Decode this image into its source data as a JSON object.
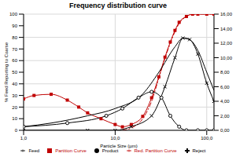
{
  "chart_data": {
    "type": "line",
    "title": "Frequency distribution curve",
    "x_label": "Particle Size (µm)",
    "y_label": "% Feed Reporting to Coarse",
    "log": "x",
    "grid": true,
    "legend": "bottom",
    "xlim": [
      1,
      120
    ],
    "xticks": [
      {
        "value": 1,
        "label": "1,0"
      },
      {
        "value": 10,
        "label": "10,0"
      },
      {
        "value": 100,
        "label": "100,0"
      }
    ],
    "ylim": [
      0,
      100
    ],
    "yticks": [
      0,
      10,
      20,
      30,
      40,
      50,
      60,
      70,
      80,
      90,
      100
    ],
    "y2lim": [
      0,
      16
    ],
    "y2ticks": [
      {
        "value": 0,
        "label": "0,00"
      },
      {
        "value": 2,
        "label": "2,00"
      },
      {
        "value": 4,
        "label": "4,00"
      },
      {
        "value": 6,
        "label": "6,00"
      },
      {
        "value": 8,
        "label": "8,00"
      },
      {
        "value": 10,
        "label": "10,00"
      },
      {
        "value": 12,
        "label": "12,00"
      },
      {
        "value": 14,
        "label": "14,00"
      },
      {
        "value": 16,
        "label": "16,00"
      }
    ],
    "series": [
      {
        "name": "Partition Curve",
        "color": "#c00000",
        "marker": "square",
        "line_style": "solid",
        "x": [
          1,
          1.3,
          2,
          3,
          4,
          5,
          7,
          10,
          12,
          15,
          20,
          25,
          30,
          35,
          40,
          45,
          50,
          60,
          70,
          80,
          100,
          120
        ],
        "values": [
          27,
          30,
          31,
          26,
          20,
          15,
          10,
          5,
          3,
          5,
          12,
          28,
          46,
          63,
          76,
          86,
          93,
          98,
          100,
          100,
          100,
          100
        ]
      },
      {
        "name": "Red. Partition Curve",
        "color": "#c00000",
        "marker": "none",
        "line_style": "dashdot",
        "x": [
          12,
          15,
          20,
          25,
          30,
          35,
          40,
          45,
          50,
          60,
          70,
          120
        ],
        "values": [
          0,
          2,
          10,
          25,
          45,
          62,
          75,
          85,
          92,
          98,
          100,
          100
        ]
      },
      {
        "name": "Feed",
        "color": "#000000",
        "marker": "none",
        "line_style": "solid",
        "axis": "y2",
        "x": [
          1,
          2,
          5,
          10,
          20,
          30,
          45,
          55,
          65,
          80,
          100,
          120
        ],
        "values": [
          0.5,
          1,
          2,
          3,
          5,
          8,
          11.5,
          12.7,
          12.5,
          11,
          8,
          5.5
        ]
      },
      {
        "name": "Product",
        "color": "#000000",
        "marker": "circle",
        "line_style": "solid",
        "axis": "y2",
        "x": [
          1,
          3,
          8,
          12,
          18,
          25,
          32,
          40,
          50,
          60,
          80,
          100,
          120
        ],
        "values": [
          0.5,
          1,
          2,
          3,
          4.5,
          5.3,
          4.5,
          2,
          0.5,
          0,
          0,
          0,
          0
        ]
      },
      {
        "name": "Reject",
        "color": "#000000",
        "marker": "x",
        "line_style": "solid",
        "axis": "y2",
        "x": [
          1,
          5,
          10,
          15,
          25,
          35,
          45,
          55,
          65,
          80,
          100,
          120
        ],
        "values": [
          0,
          0,
          0,
          0.5,
          2,
          6,
          10,
          12.7,
          12.5,
          10.5,
          6.5,
          4
        ]
      }
    ]
  }
}
